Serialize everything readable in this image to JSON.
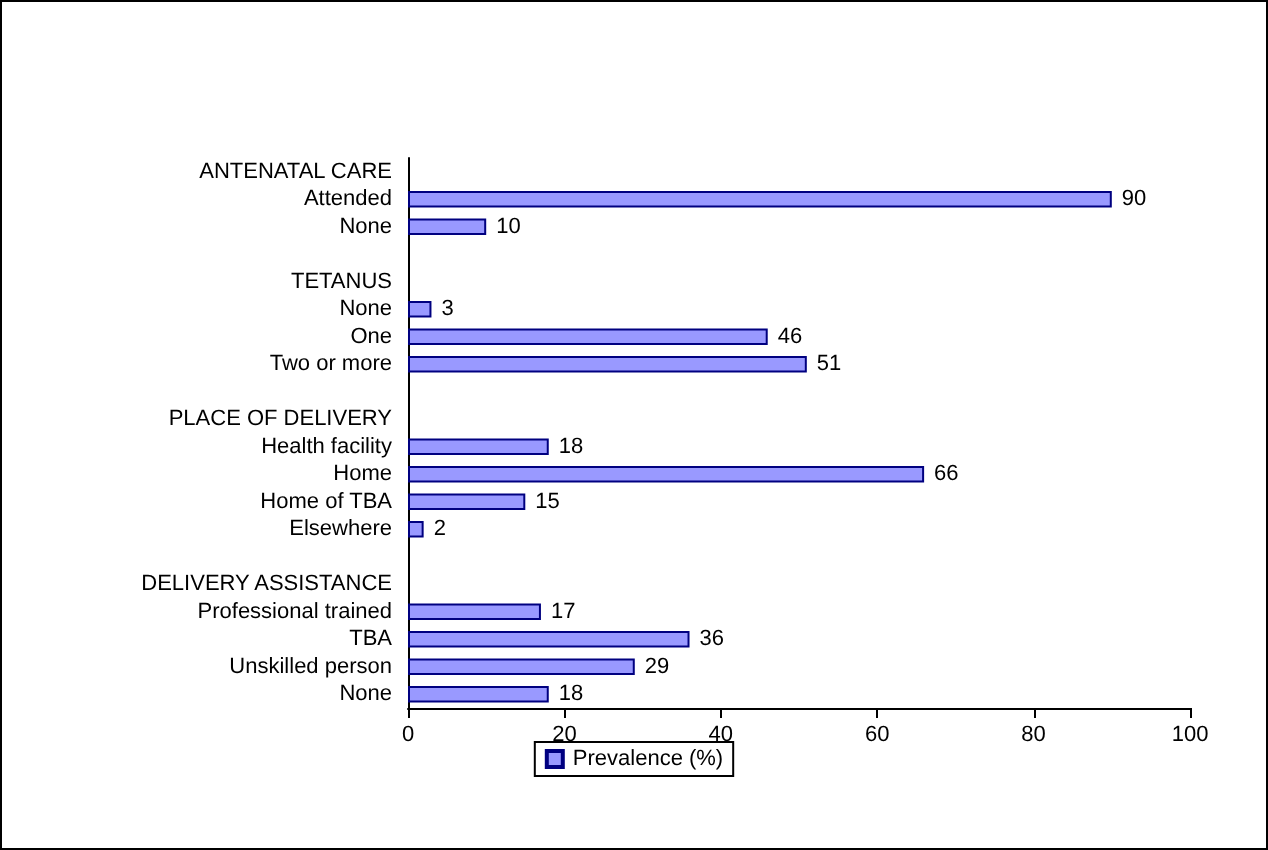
{
  "chart_data": {
    "type": "bar",
    "orientation": "horizontal",
    "categories": [
      "ANTENATAL CARE",
      "Attended",
      "None",
      null,
      "TETANUS",
      "None",
      "One",
      "Two or more",
      null,
      "PLACE OF DELIVERY",
      "Health facility",
      "Home",
      "Home of TBA",
      "Elsewhere",
      null,
      "DELIVERY ASSISTANCE",
      "Professional trained",
      "TBA",
      "Unskilled person",
      "None"
    ],
    "series": [
      {
        "name": "Prevalence (%)",
        "color": "#9999ff",
        "values": [
          null,
          90,
          10,
          null,
          null,
          3,
          46,
          51,
          null,
          null,
          18,
          66,
          15,
          2,
          null,
          null,
          17,
          36,
          29,
          18
        ]
      }
    ],
    "xlim": [
      0,
      100
    ],
    "xticks": [
      0,
      20,
      40,
      60,
      80,
      100
    ],
    "data_labels": true,
    "grid": false,
    "legend": "bottom"
  }
}
